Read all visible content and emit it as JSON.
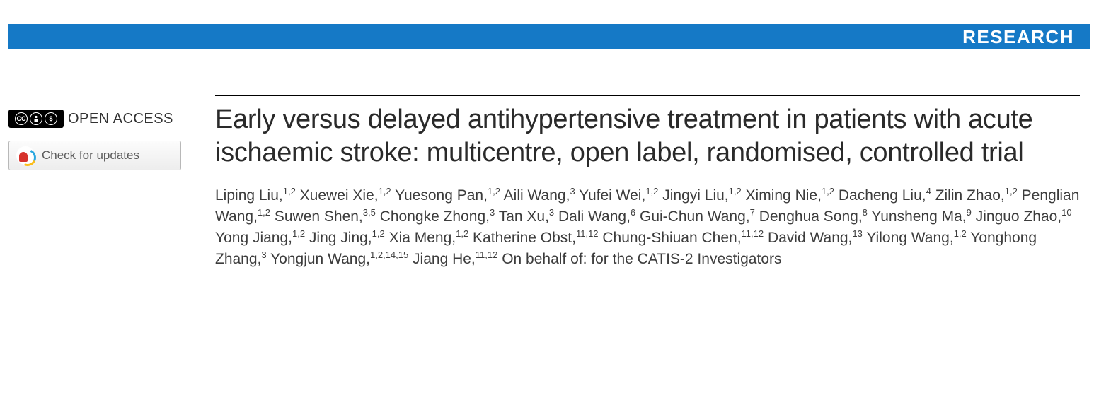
{
  "banner": {
    "label": "RESEARCH",
    "background_color": "#1579c6",
    "text_color": "#ffffff"
  },
  "left": {
    "open_access_label": "OPEN ACCESS",
    "check_updates_label": "Check for updates"
  },
  "article": {
    "title": "Early versus delayed antihypertensive treatment in patients with acute ischaemic stroke: multicentre, open label, randomised, controlled trial",
    "authors": [
      {
        "name": "Liping Liu",
        "affil": "1,2"
      },
      {
        "name": "Xuewei Xie",
        "affil": "1,2"
      },
      {
        "name": "Yuesong Pan",
        "affil": "1,2"
      },
      {
        "name": "Aili Wang",
        "affil": "3"
      },
      {
        "name": "Yufei Wei",
        "affil": "1,2"
      },
      {
        "name": "Jingyi Liu",
        "affil": "1,2"
      },
      {
        "name": "Ximing Nie",
        "affil": "1,2"
      },
      {
        "name": "Dacheng Liu",
        "affil": "4"
      },
      {
        "name": "Zilin Zhao",
        "affil": "1,2"
      },
      {
        "name": "Penglian Wang",
        "affil": "1,2"
      },
      {
        "name": "Suwen Shen",
        "affil": "3,5"
      },
      {
        "name": "Chongke Zhong",
        "affil": "3"
      },
      {
        "name": "Tan Xu",
        "affil": "3"
      },
      {
        "name": "Dali Wang",
        "affil": "6"
      },
      {
        "name": "Gui-Chun Wang",
        "affil": "7"
      },
      {
        "name": "Denghua Song",
        "affil": "8"
      },
      {
        "name": "Yunsheng Ma",
        "affil": "9"
      },
      {
        "name": "Jinguo Zhao",
        "affil": "10"
      },
      {
        "name": "Yong Jiang",
        "affil": "1,2"
      },
      {
        "name": "Jing Jing",
        "affil": "1,2"
      },
      {
        "name": "Xia Meng",
        "affil": "1,2"
      },
      {
        "name": "Katherine Obst",
        "affil": "11,12"
      },
      {
        "name": "Chung-Shiuan Chen",
        "affil": "11,12"
      },
      {
        "name": "David Wang",
        "affil": "13"
      },
      {
        "name": "Yilong Wang",
        "affil": "1,2"
      },
      {
        "name": "Yonghong Zhang",
        "affil": "3"
      },
      {
        "name": "Yongjun Wang",
        "affil": "1,2,14,15"
      },
      {
        "name": "Jiang He",
        "affil": "11,12"
      }
    ],
    "behalf": "On behalf of: for the CATIS-2 Investigators"
  },
  "styling": {
    "title_fontsize": 38,
    "title_color": "#2a2a2a",
    "authors_fontsize": 21,
    "authors_color": "#3c3c3c",
    "rule_color": "#000000",
    "page_background": "#ffffff"
  }
}
